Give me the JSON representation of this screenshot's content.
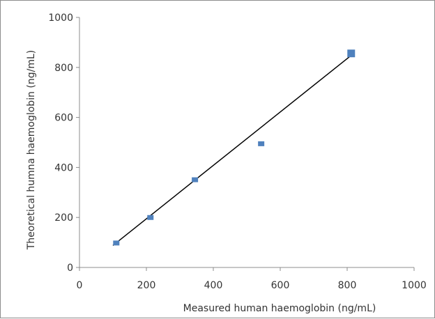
{
  "chart_data": {
    "type": "scatter",
    "title": "",
    "xlabel": "Measured human haemoglobin (ng/mL)",
    "ylabel": "Theoretical humna haemoglobin (ng/mL)",
    "xlim": [
      0,
      1000
    ],
    "ylim": [
      0,
      1000
    ],
    "x_ticks": [
      "0",
      "200",
      "400",
      "600",
      "800",
      "1000"
    ],
    "y_ticks": [
      "0",
      "200",
      "400",
      "600",
      "800",
      "1000"
    ],
    "grid": false,
    "legend": "none",
    "marker_color": "#4f81bd",
    "trendline_color": "#000000",
    "points": [
      {
        "x": 110,
        "y": 95
      },
      {
        "x": 212,
        "y": 197
      },
      {
        "x": 345,
        "y": 348
      },
      {
        "x": 543,
        "y": 492
      },
      {
        "x": 812,
        "y": 856
      }
    ],
    "trendline": {
      "x": [
        100,
        812
      ],
      "y": [
        88,
        848
      ]
    }
  }
}
